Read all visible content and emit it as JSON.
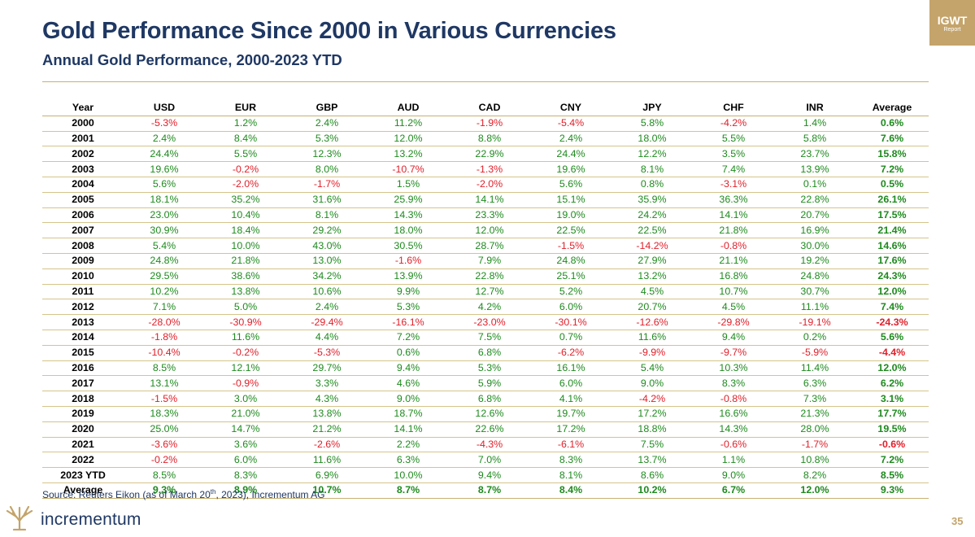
{
  "header": {
    "title": "Gold Performance Since 2000 in Various Currencies",
    "subtitle": "Annual Gold Performance, 2000-2023 YTD"
  },
  "badge": {
    "title": "IGWT",
    "subtitle": "Report"
  },
  "source": {
    "prefix": "Source: Reuters Eikon (as of March 20",
    "superscript": "th",
    "suffix": ", 2023), Incrementum AG"
  },
  "logo": {
    "text": "incrementum"
  },
  "page_number": "35",
  "colors": {
    "positive": "#1e8a1e",
    "negative": "#e0202a",
    "title": "#1f3864",
    "gold": "#c4a46b"
  },
  "chart_data": {
    "type": "table",
    "title": "Gold Performance Since 2000 in Various Currencies",
    "subtitle": "Annual Gold Performance, 2000-2023 YTD",
    "columns": [
      "Year",
      "USD",
      "EUR",
      "GBP",
      "AUD",
      "CAD",
      "CNY",
      "JPY",
      "CHF",
      "INR",
      "Average"
    ],
    "rows": [
      [
        "2000",
        "-5.3%",
        "1.2%",
        "2.4%",
        "11.2%",
        "-1.9%",
        "-5.4%",
        "5.8%",
        "-4.2%",
        "1.4%",
        "0.6%"
      ],
      [
        "2001",
        "2.4%",
        "8.4%",
        "5.3%",
        "12.0%",
        "8.8%",
        "2.4%",
        "18.0%",
        "5.5%",
        "5.8%",
        "7.6%"
      ],
      [
        "2002",
        "24.4%",
        "5.5%",
        "12.3%",
        "13.2%",
        "22.9%",
        "24.4%",
        "12.2%",
        "3.5%",
        "23.7%",
        "15.8%"
      ],
      [
        "2003",
        "19.6%",
        "-0.2%",
        "8.0%",
        "-10.7%",
        "-1.3%",
        "19.6%",
        "8.1%",
        "7.4%",
        "13.9%",
        "7.2%"
      ],
      [
        "2004",
        "5.6%",
        "-2.0%",
        "-1.7%",
        "1.5%",
        "-2.0%",
        "5.6%",
        "0.8%",
        "-3.1%",
        "0.1%",
        "0.5%"
      ],
      [
        "2005",
        "18.1%",
        "35.2%",
        "31.6%",
        "25.9%",
        "14.1%",
        "15.1%",
        "35.9%",
        "36.3%",
        "22.8%",
        "26.1%"
      ],
      [
        "2006",
        "23.0%",
        "10.4%",
        "8.1%",
        "14.3%",
        "23.3%",
        "19.0%",
        "24.2%",
        "14.1%",
        "20.7%",
        "17.5%"
      ],
      [
        "2007",
        "30.9%",
        "18.4%",
        "29.2%",
        "18.0%",
        "12.0%",
        "22.5%",
        "22.5%",
        "21.8%",
        "16.9%",
        "21.4%"
      ],
      [
        "2008",
        "5.4%",
        "10.0%",
        "43.0%",
        "30.5%",
        "28.7%",
        "-1.5%",
        "-14.2%",
        "-0.8%",
        "30.0%",
        "14.6%"
      ],
      [
        "2009",
        "24.8%",
        "21.8%",
        "13.0%",
        "-1.6%",
        "7.9%",
        "24.8%",
        "27.9%",
        "21.1%",
        "19.2%",
        "17.6%"
      ],
      [
        "2010",
        "29.5%",
        "38.6%",
        "34.2%",
        "13.9%",
        "22.8%",
        "25.1%",
        "13.2%",
        "16.8%",
        "24.8%",
        "24.3%"
      ],
      [
        "2011",
        "10.2%",
        "13.8%",
        "10.6%",
        "9.9%",
        "12.7%",
        "5.2%",
        "4.5%",
        "10.7%",
        "30.7%",
        "12.0%"
      ],
      [
        "2012",
        "7.1%",
        "5.0%",
        "2.4%",
        "5.3%",
        "4.2%",
        "6.0%",
        "20.7%",
        "4.5%",
        "11.1%",
        "7.4%"
      ],
      [
        "2013",
        "-28.0%",
        "-30.9%",
        "-29.4%",
        "-16.1%",
        "-23.0%",
        "-30.1%",
        "-12.6%",
        "-29.8%",
        "-19.1%",
        "-24.3%"
      ],
      [
        "2014",
        "-1.8%",
        "11.6%",
        "4.4%",
        "7.2%",
        "7.5%",
        "0.7%",
        "11.6%",
        "9.4%",
        "0.2%",
        "5.6%"
      ],
      [
        "2015",
        "-10.4%",
        "-0.2%",
        "-5.3%",
        "0.6%",
        "6.8%",
        "-6.2%",
        "-9.9%",
        "-9.7%",
        "-5.9%",
        "-4.4%"
      ],
      [
        "2016",
        "8.5%",
        "12.1%",
        "29.7%",
        "9.4%",
        "5.3%",
        "16.1%",
        "5.4%",
        "10.3%",
        "11.4%",
        "12.0%"
      ],
      [
        "2017",
        "13.1%",
        "-0.9%",
        "3.3%",
        "4.6%",
        "5.9%",
        "6.0%",
        "9.0%",
        "8.3%",
        "6.3%",
        "6.2%"
      ],
      [
        "2018",
        "-1.5%",
        "3.0%",
        "4.3%",
        "9.0%",
        "6.8%",
        "4.1%",
        "-4.2%",
        "-0.8%",
        "7.3%",
        "3.1%"
      ],
      [
        "2019",
        "18.3%",
        "21.0%",
        "13.8%",
        "18.7%",
        "12.6%",
        "19.7%",
        "17.2%",
        "16.6%",
        "21.3%",
        "17.7%"
      ],
      [
        "2020",
        "25.0%",
        "14.7%",
        "21.2%",
        "14.1%",
        "22.6%",
        "17.2%",
        "18.8%",
        "14.3%",
        "28.0%",
        "19.5%"
      ],
      [
        "2021",
        "-3.6%",
        "3.6%",
        "-2.6%",
        "2.2%",
        "-4.3%",
        "-6.1%",
        "7.5%",
        "-0.6%",
        "-1.7%",
        "-0.6%"
      ],
      [
        "2022",
        "-0.2%",
        "6.0%",
        "11.6%",
        "6.3%",
        "7.0%",
        "8.3%",
        "13.7%",
        "1.1%",
        "10.8%",
        "7.2%"
      ],
      [
        "2023 YTD",
        "8.5%",
        "8.3%",
        "6.9%",
        "10.0%",
        "9.4%",
        "8.1%",
        "8.6%",
        "9.0%",
        "8.2%",
        "8.5%"
      ]
    ],
    "average_row": [
      "Average",
      "9.3%",
      "8.9%",
      "10.7%",
      "8.7%",
      "8.7%",
      "8.4%",
      "10.2%",
      "6.7%",
      "12.0%",
      "9.3%"
    ]
  }
}
